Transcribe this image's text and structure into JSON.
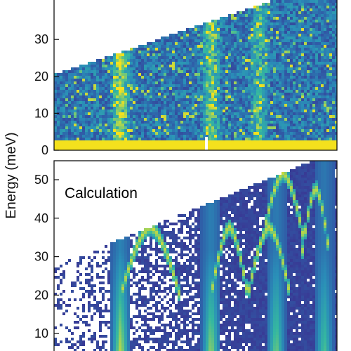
{
  "chart_data": [
    {
      "type": "heatmap",
      "panel": "top",
      "title": "",
      "ylabel": "Energy (meV)",
      "ylim": [
        0,
        41
      ],
      "yticks": [
        0,
        10,
        20,
        30
      ],
      "colormap": [
        "#3b2f8f",
        "#2f5ea8",
        "#2a8fb8",
        "#35b8a0",
        "#9fd25a",
        "#f4e11d"
      ],
      "branches": [
        {
          "center": 0.23,
          "intensity": 0.8
        },
        {
          "center": 0.55,
          "intensity": 0.6
        },
        {
          "center": 0.72,
          "intensity": 0.5
        }
      ]
    },
    {
      "type": "heatmap",
      "panel": "bottom",
      "title": "Calculation",
      "ylabel": "Energy (meV)",
      "ylim": [
        5,
        55
      ],
      "yticks": [
        10,
        20,
        30,
        40,
        50
      ],
      "colormap": [
        "#3b2f8f",
        "#2f5ea8",
        "#2a8fb8",
        "#35b8a0",
        "#9fd25a",
        "#f4e11d"
      ],
      "branches": [
        {
          "center": 0.23,
          "intensity": 1.0
        },
        {
          "center": 0.55,
          "intensity": 0.9
        },
        {
          "center": 0.78,
          "intensity": 0.8
        },
        {
          "center": 0.95,
          "intensity": 0.7
        }
      ]
    }
  ],
  "labels": {
    "y_axis": "Energy (meV)",
    "bottom_panel": "Calculation"
  }
}
